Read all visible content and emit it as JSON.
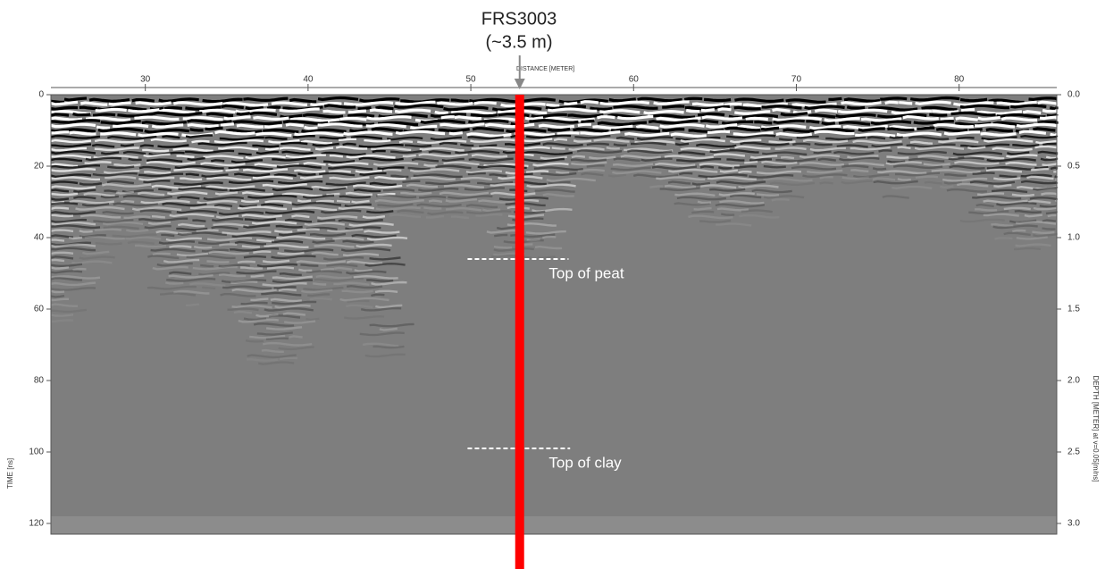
{
  "chart_data": {
    "type": "radargram",
    "marker": {
      "name": "FRS3003",
      "label": "(~3.5 m)",
      "x": 53,
      "color": "#ff0000"
    },
    "xlabel": "DISTANCE [METER]",
    "ylabel": "TIME [ns]",
    "y2label": "DEPTH [METER] at v=0.05[m/ns]",
    "xlim": [
      24.2,
      86.0
    ],
    "xticks": [
      30,
      40,
      50,
      60,
      70,
      80
    ],
    "ylim": [
      0,
      123
    ],
    "yticks": [
      0,
      20,
      40,
      60,
      80,
      100,
      120
    ],
    "y2lim": [
      0,
      3.075
    ],
    "y2ticks": [
      {
        "value": 0,
        "label": "0.0"
      },
      {
        "value": 0.5,
        "label": "0.5"
      },
      {
        "value": 1,
        "label": "1.0"
      },
      {
        "value": 1.5,
        "label": "1.5"
      },
      {
        "value": 2,
        "label": "2.0"
      },
      {
        "value": 2.5,
        "label": "2.5"
      },
      {
        "value": 3,
        "label": "3.0"
      }
    ],
    "annotations": [
      {
        "text": "Top of peat",
        "x": [
          49.8,
          56.0
        ],
        "y": 46
      },
      {
        "text": "Top of clay",
        "x": [
          49.8,
          56.1
        ],
        "y": 99
      }
    ]
  }
}
